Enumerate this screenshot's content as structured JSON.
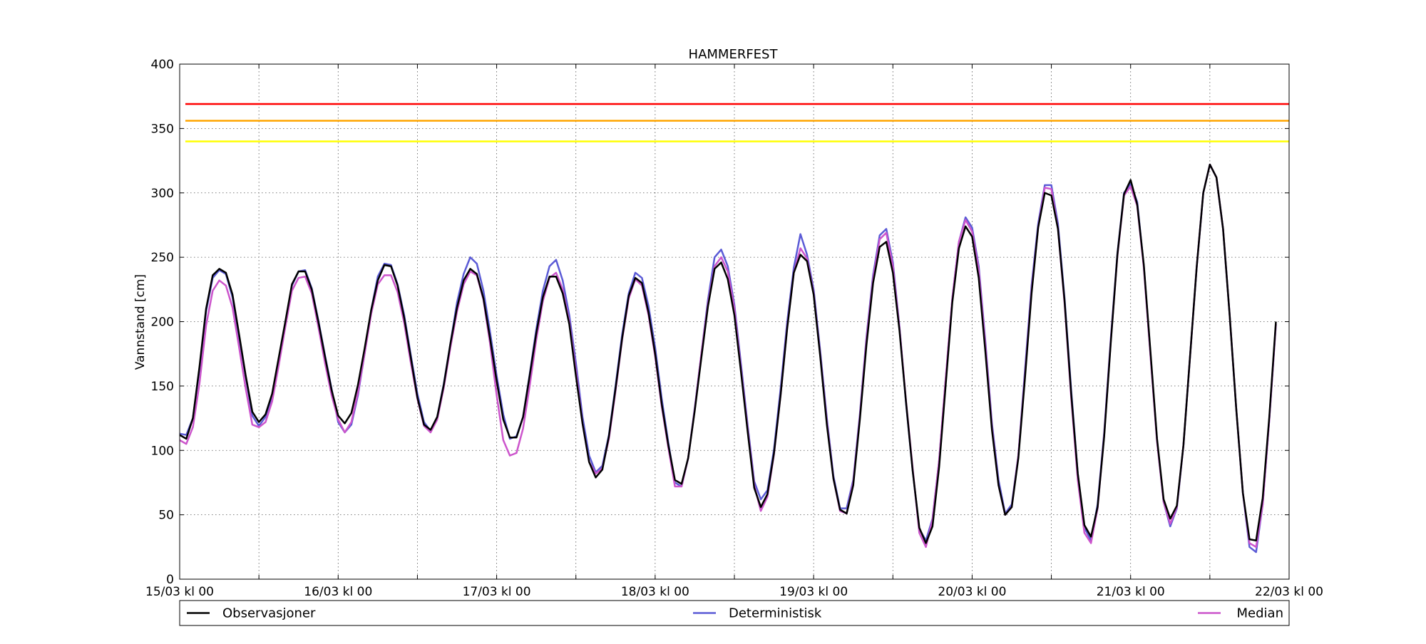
{
  "chart_data": {
    "type": "line",
    "title": "HAMMERFEST",
    "xlabel": "",
    "ylabel": "Vannstand [cm]",
    "ylim": [
      0,
      400
    ],
    "xlim": [
      "15/03 kl 00",
      "22/03 kl 00"
    ],
    "x_start": "15/03 kl 00",
    "x_step_hours": 1,
    "yticks": [
      "0",
      "50",
      "100",
      "150",
      "200",
      "250",
      "300",
      "350",
      "400"
    ],
    "xticks": [
      "15/03 kl 00",
      "16/03 kl 00",
      "17/03 kl 00",
      "18/03 kl 00",
      "19/03 kl 00",
      "20/03 kl 00",
      "21/03 kl 00",
      "22/03 kl 00"
    ],
    "grid": true,
    "legend_position": "bottom",
    "thresholds": [
      {
        "value": 369,
        "color": "#ff0000"
      },
      {
        "value": 356,
        "color": "#ffa500"
      },
      {
        "value": 340,
        "color": "#ffff00"
      }
    ],
    "series": [
      {
        "name": "Observasjoner",
        "color": "#000000",
        "values": [
          112,
          109,
          125,
          165,
          210,
          236,
          241,
          238,
          221,
          190,
          158,
          130,
          122,
          128,
          144,
          172,
          200,
          229,
          239,
          239,
          225,
          200,
          173,
          147,
          127,
          121,
          129,
          151,
          179,
          209,
          232,
          244,
          243,
          228,
          203,
          172,
          141,
          120,
          116,
          126,
          151,
          183,
          211,
          232,
          241,
          237,
          218,
          187,
          154,
          124,
          110,
          110,
          126,
          158,
          191,
          219,
          235,
          235,
          222,
          198,
          158,
          121,
          91,
          79,
          85,
          111,
          148,
          187,
          220,
          234,
          230,
          207,
          175,
          136,
          104,
          77,
          74,
          94,
          131,
          172,
          212,
          241,
          246,
          233,
          205,
          161,
          115,
          71,
          56,
          66,
          98,
          143,
          195,
          238,
          252,
          247,
          221,
          173,
          120,
          78,
          54,
          51,
          73,
          124,
          182,
          230,
          258,
          262,
          238,
          193,
          137,
          84,
          40,
          28,
          41,
          87,
          151,
          215,
          257,
          274,
          266,
          234,
          177,
          116,
          73,
          50,
          56,
          94,
          156,
          222,
          273,
          300,
          298,
          272,
          216,
          144,
          82,
          42,
          33,
          56,
          111,
          184,
          252,
          299,
          310,
          291,
          244,
          177,
          109,
          62,
          47,
          57,
          104,
          173,
          242,
          300,
          322,
          312,
          272,
          205,
          132,
          67,
          31,
          30,
          63,
          126,
          200
        ]
      },
      {
        "name": "Deterministisk",
        "color": "#5b5bd6",
        "values": [
          113,
          112,
          125,
          163,
          208,
          234,
          240,
          237,
          219,
          188,
          157,
          127,
          119,
          126,
          142,
          171,
          199,
          228,
          239,
          240,
          226,
          201,
          174,
          148,
          122,
          114,
          120,
          143,
          175,
          209,
          235,
          245,
          244,
          229,
          205,
          174,
          144,
          122,
          115,
          126,
          152,
          183,
          215,
          237,
          250,
          245,
          224,
          192,
          158,
          128,
          109,
          111,
          126,
          159,
          194,
          224,
          243,
          248,
          232,
          205,
          168,
          126,
          96,
          83,
          88,
          112,
          150,
          190,
          222,
          238,
          234,
          212,
          180,
          140,
          106,
          75,
          72,
          94,
          133,
          175,
          217,
          250,
          256,
          243,
          213,
          167,
          120,
          76,
          62,
          69,
          101,
          148,
          200,
          242,
          268,
          252,
          225,
          177,
          125,
          80,
          55,
          55,
          77,
          128,
          188,
          236,
          267,
          272,
          246,
          196,
          136,
          84,
          39,
          30,
          47,
          92,
          155,
          218,
          262,
          281,
          273,
          243,
          185,
          121,
          77,
          51,
          58,
          96,
          162,
          228,
          276,
          306,
          306,
          276,
          218,
          147,
          82,
          40,
          30,
          58,
          114,
          187,
          253,
          300,
          307,
          293,
          243,
          175,
          108,
          60,
          41,
          55,
          104,
          173,
          242,
          300,
          322,
          312,
          272,
          205,
          132,
          67,
          25,
          21,
          58,
          124,
          198
        ]
      },
      {
        "name": "Median",
        "color": "#cc55cc",
        "values": [
          108,
          105,
          118,
          152,
          197,
          224,
          232,
          228,
          211,
          180,
          148,
          120,
          118,
          122,
          138,
          166,
          196,
          224,
          234,
          235,
          222,
          196,
          168,
          143,
          124,
          114,
          122,
          145,
          175,
          206,
          229,
          236,
          236,
          223,
          199,
          168,
          140,
          119,
          114,
          124,
          149,
          180,
          208,
          229,
          239,
          236,
          217,
          183,
          143,
          108,
          96,
          98,
          117,
          150,
          186,
          216,
          234,
          238,
          225,
          200,
          162,
          121,
          91,
          82,
          86,
          109,
          146,
          186,
          218,
          233,
          228,
          205,
          173,
          134,
          102,
          72,
          72,
          94,
          132,
          175,
          214,
          243,
          250,
          239,
          210,
          163,
          117,
          73,
          53,
          64,
          97,
          143,
          196,
          238,
          257,
          249,
          222,
          174,
          122,
          78,
          53,
          51,
          75,
          126,
          186,
          233,
          264,
          269,
          243,
          195,
          138,
          86,
          36,
          25,
          46,
          92,
          156,
          218,
          262,
          279,
          270,
          240,
          182,
          118,
          73,
          50,
          56,
          96,
          158,
          224,
          273,
          304,
          303,
          272,
          214,
          141,
          77,
          36,
          28,
          55,
          112,
          185,
          251,
          298,
          305,
          290,
          242,
          174,
          107,
          60,
          43,
          56,
          104,
          173,
          242,
          300,
          322,
          312,
          272,
          205,
          132,
          67,
          28,
          25,
          58,
          124,
          198
        ]
      }
    ]
  }
}
